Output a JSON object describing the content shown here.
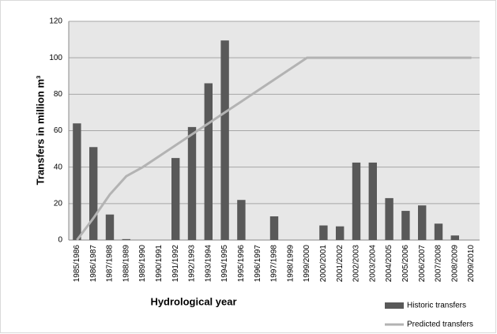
{
  "chart_data": {
    "type": "bar",
    "y_label": "Transfers in million m³",
    "x_label": "Hydrological year",
    "categories": [
      "1985/1986",
      "1986/1987",
      "1987/1988",
      "1988/1989",
      "1989/1990",
      "1990/1991",
      "1991/1992",
      "1992/1993",
      "1993/1994",
      "1994/1995",
      "1995/1996",
      "1996/1997",
      "1997/1998",
      "1998/1999",
      "1999/2000",
      "2000/2001",
      "2001/2002",
      "2002/2003",
      "2003/2004",
      "2004/2005",
      "2005/2006",
      "2006/2007",
      "2007/2008",
      "2008/2009",
      "2009/2010"
    ],
    "series": [
      {
        "name": "Historic transfers",
        "type": "bar",
        "color": "#595959",
        "values": [
          64,
          51,
          14,
          0.5,
          0,
          0,
          45,
          62,
          86,
          109.5,
          22,
          0,
          13,
          0,
          0,
          8,
          7.5,
          42.5,
          42.5,
          23,
          16,
          19,
          9,
          2.5,
          0
        ]
      },
      {
        "name": "Predicted transfers",
        "type": "line",
        "color": "#b3b3b3",
        "values": [
          0,
          12,
          25,
          35,
          40,
          46,
          52,
          58,
          64,
          70,
          76,
          82,
          88,
          94,
          100,
          100,
          100,
          100,
          100,
          100,
          100,
          100,
          100,
          100,
          100
        ]
      }
    ],
    "ylim": [
      0,
      120
    ],
    "yticks": [
      0,
      20,
      40,
      60,
      80,
      100,
      120
    ],
    "grid": true,
    "legend": "lower right"
  }
}
